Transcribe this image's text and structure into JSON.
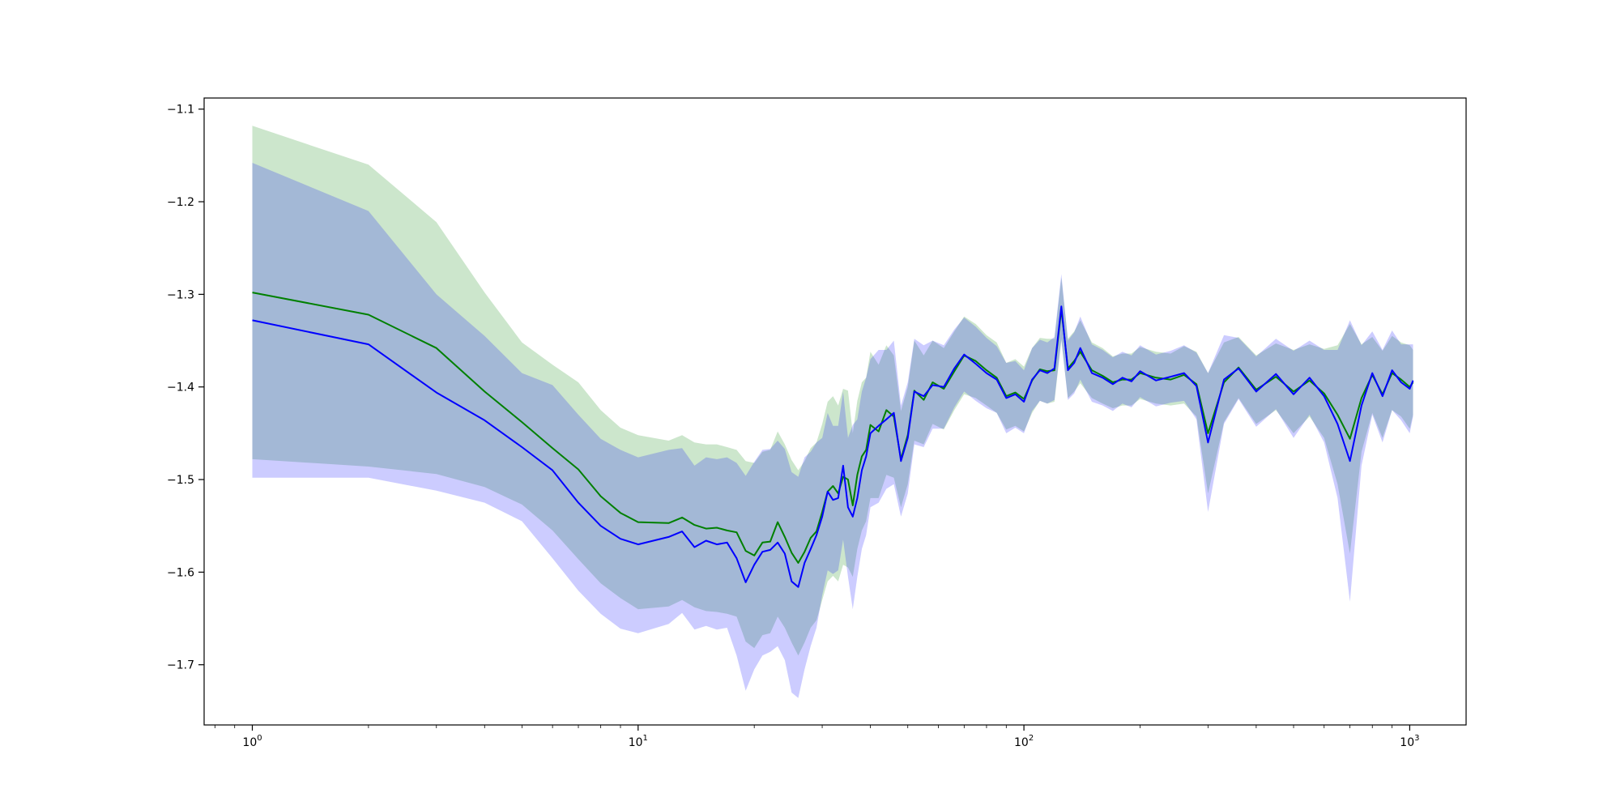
{
  "chart_data": {
    "type": "line",
    "title": "",
    "xlabel": "",
    "ylabel": "",
    "xscale": "log",
    "xlim": [
      0.75,
      1400
    ],
    "ylim": [
      -1.765,
      -1.088
    ],
    "grid": false,
    "legend": "none",
    "x_ticks": [
      {
        "value": 1,
        "base": "10",
        "exp": "0"
      },
      {
        "value": 10,
        "base": "10",
        "exp": "1"
      },
      {
        "value": 100,
        "base": "10",
        "exp": "2"
      },
      {
        "value": 1000,
        "base": "10",
        "exp": "3"
      }
    ],
    "y_ticks": [
      {
        "value": -1.1,
        "label": "−1.1"
      },
      {
        "value": -1.2,
        "label": "−1.2"
      },
      {
        "value": -1.3,
        "label": "−1.3"
      },
      {
        "value": -1.4,
        "label": "−1.4"
      },
      {
        "value": -1.5,
        "label": "−1.5"
      },
      {
        "value": -1.6,
        "label": "−1.6"
      },
      {
        "value": -1.7,
        "label": "−1.7"
      }
    ],
    "series": [
      {
        "color": "#008000",
        "band_color": "#008000",
        "band_opacity": 0.2,
        "x": [
          1,
          2,
          3,
          4,
          5,
          6,
          7,
          8,
          9,
          10,
          12,
          13,
          14,
          15,
          16,
          17,
          18,
          19,
          20,
          21,
          22,
          23,
          24,
          25,
          26,
          27,
          28,
          29,
          30,
          31,
          32,
          33,
          34,
          35,
          36,
          37,
          38,
          39,
          40,
          42,
          44,
          46,
          48,
          50,
          52,
          55,
          58,
          62,
          66,
          70,
          75,
          80,
          85,
          90,
          95,
          100,
          105,
          110,
          115,
          120,
          125,
          130,
          135,
          140,
          150,
          160,
          170,
          180,
          190,
          200,
          220,
          240,
          260,
          280,
          300,
          330,
          360,
          400,
          450,
          500,
          550,
          600,
          650,
          700,
          750,
          800,
          850,
          900,
          950,
          1000,
          1020
        ],
        "mean": [
          -1.298,
          -1.322,
          -1.358,
          -1.405,
          -1.438,
          -1.466,
          -1.489,
          -1.518,
          -1.536,
          -1.546,
          -1.547,
          -1.541,
          -1.549,
          -1.553,
          -1.552,
          -1.555,
          -1.557,
          -1.577,
          -1.582,
          -1.568,
          -1.567,
          -1.546,
          -1.562,
          -1.579,
          -1.59,
          -1.578,
          -1.563,
          -1.556,
          -1.535,
          -1.513,
          -1.507,
          -1.515,
          -1.497,
          -1.5,
          -1.528,
          -1.495,
          -1.475,
          -1.468,
          -1.441,
          -1.448,
          -1.425,
          -1.432,
          -1.478,
          -1.452,
          -1.404,
          -1.414,
          -1.395,
          -1.402,
          -1.383,
          -1.366,
          -1.372,
          -1.382,
          -1.39,
          -1.41,
          -1.406,
          -1.413,
          -1.393,
          -1.381,
          -1.383,
          -1.382,
          -1.316,
          -1.38,
          -1.372,
          -1.362,
          -1.382,
          -1.388,
          -1.395,
          -1.392,
          -1.392,
          -1.385,
          -1.39,
          -1.392,
          -1.387,
          -1.397,
          -1.45,
          -1.395,
          -1.379,
          -1.403,
          -1.389,
          -1.405,
          -1.393,
          -1.407,
          -1.43,
          -1.456,
          -1.412,
          -1.387,
          -1.408,
          -1.385,
          -1.392,
          -1.4,
          -1.395
        ],
        "lower": [
          -1.478,
          -1.486,
          -1.494,
          -1.508,
          -1.527,
          -1.555,
          -1.586,
          -1.612,
          -1.628,
          -1.64,
          -1.637,
          -1.63,
          -1.638,
          -1.642,
          -1.643,
          -1.645,
          -1.648,
          -1.675,
          -1.682,
          -1.668,
          -1.666,
          -1.648,
          -1.66,
          -1.676,
          -1.69,
          -1.676,
          -1.66,
          -1.652,
          -1.63,
          -1.61,
          -1.604,
          -1.61,
          -1.592,
          -1.595,
          -1.605,
          -1.575,
          -1.555,
          -1.545,
          -1.52,
          -1.52,
          -1.495,
          -1.498,
          -1.53,
          -1.505,
          -1.458,
          -1.462,
          -1.44,
          -1.446,
          -1.425,
          -1.408,
          -1.412,
          -1.42,
          -1.428,
          -1.446,
          -1.442,
          -1.448,
          -1.428,
          -1.415,
          -1.418,
          -1.416,
          -1.35,
          -1.412,
          -1.405,
          -1.396,
          -1.412,
          -1.418,
          -1.423,
          -1.42,
          -1.42,
          -1.413,
          -1.418,
          -1.42,
          -1.418,
          -1.432,
          -1.515,
          -1.438,
          -1.412,
          -1.44,
          -1.425,
          -1.45,
          -1.432,
          -1.455,
          -1.505,
          -1.58,
          -1.47,
          -1.428,
          -1.455,
          -1.425,
          -1.432,
          -1.445,
          -1.43
        ],
        "upper": [
          -1.118,
          -1.16,
          -1.222,
          -1.298,
          -1.352,
          -1.376,
          -1.395,
          -1.425,
          -1.444,
          -1.452,
          -1.458,
          -1.452,
          -1.46,
          -1.462,
          -1.462,
          -1.465,
          -1.468,
          -1.48,
          -1.482,
          -1.47,
          -1.468,
          -1.448,
          -1.462,
          -1.479,
          -1.49,
          -1.48,
          -1.466,
          -1.46,
          -1.44,
          -1.416,
          -1.41,
          -1.42,
          -1.402,
          -1.404,
          -1.45,
          -1.415,
          -1.395,
          -1.39,
          -1.362,
          -1.376,
          -1.355,
          -1.366,
          -1.426,
          -1.4,
          -1.35,
          -1.366,
          -1.35,
          -1.358,
          -1.34,
          -1.324,
          -1.332,
          -1.344,
          -1.352,
          -1.374,
          -1.37,
          -1.378,
          -1.358,
          -1.347,
          -1.348,
          -1.348,
          -1.282,
          -1.348,
          -1.34,
          -1.328,
          -1.352,
          -1.358,
          -1.367,
          -1.364,
          -1.364,
          -1.357,
          -1.362,
          -1.364,
          -1.356,
          -1.362,
          -1.385,
          -1.352,
          -1.346,
          -1.366,
          -1.353,
          -1.36,
          -1.354,
          -1.359,
          -1.355,
          -1.332,
          -1.354,
          -1.346,
          -1.361,
          -1.345,
          -1.352,
          -1.355,
          -1.36
        ]
      },
      {
        "color": "#0000ff",
        "band_color": "#0000ff",
        "band_opacity": 0.2,
        "x": [
          1,
          2,
          3,
          4,
          5,
          6,
          7,
          8,
          9,
          10,
          12,
          13,
          14,
          15,
          16,
          17,
          18,
          19,
          20,
          21,
          22,
          23,
          24,
          25,
          26,
          27,
          28,
          29,
          30,
          31,
          32,
          33,
          34,
          35,
          36,
          37,
          38,
          39,
          40,
          42,
          44,
          46,
          48,
          50,
          52,
          55,
          58,
          62,
          66,
          70,
          75,
          80,
          85,
          90,
          95,
          100,
          105,
          110,
          115,
          120,
          125,
          130,
          135,
          140,
          150,
          160,
          170,
          180,
          190,
          200,
          220,
          240,
          260,
          280,
          300,
          330,
          360,
          400,
          450,
          500,
          550,
          600,
          650,
          700,
          750,
          800,
          850,
          900,
          950,
          1000,
          1020
        ],
        "mean": [
          -1.328,
          -1.354,
          -1.406,
          -1.436,
          -1.465,
          -1.49,
          -1.525,
          -1.55,
          -1.564,
          -1.57,
          -1.562,
          -1.556,
          -1.573,
          -1.566,
          -1.57,
          -1.568,
          -1.585,
          -1.611,
          -1.592,
          -1.578,
          -1.576,
          -1.568,
          -1.58,
          -1.61,
          -1.616,
          -1.59,
          -1.575,
          -1.56,
          -1.54,
          -1.513,
          -1.522,
          -1.52,
          -1.485,
          -1.53,
          -1.54,
          -1.52,
          -1.49,
          -1.475,
          -1.45,
          -1.442,
          -1.435,
          -1.428,
          -1.48,
          -1.455,
          -1.405,
          -1.41,
          -1.398,
          -1.4,
          -1.38,
          -1.365,
          -1.375,
          -1.385,
          -1.392,
          -1.412,
          -1.408,
          -1.416,
          -1.392,
          -1.382,
          -1.385,
          -1.38,
          -1.313,
          -1.382,
          -1.374,
          -1.358,
          -1.385,
          -1.39,
          -1.397,
          -1.39,
          -1.394,
          -1.383,
          -1.393,
          -1.389,
          -1.385,
          -1.399,
          -1.46,
          -1.392,
          -1.38,
          -1.405,
          -1.386,
          -1.408,
          -1.39,
          -1.41,
          -1.44,
          -1.48,
          -1.42,
          -1.385,
          -1.41,
          -1.382,
          -1.395,
          -1.402,
          -1.393
        ],
        "lower": [
          -1.498,
          -1.498,
          -1.512,
          -1.525,
          -1.545,
          -1.585,
          -1.62,
          -1.645,
          -1.661,
          -1.666,
          -1.656,
          -1.644,
          -1.662,
          -1.658,
          -1.662,
          -1.66,
          -1.69,
          -1.728,
          -1.705,
          -1.69,
          -1.686,
          -1.68,
          -1.695,
          -1.73,
          -1.736,
          -1.705,
          -1.68,
          -1.66,
          -1.625,
          -1.598,
          -1.602,
          -1.598,
          -1.565,
          -1.605,
          -1.64,
          -1.605,
          -1.575,
          -1.56,
          -1.53,
          -1.525,
          -1.51,
          -1.505,
          -1.54,
          -1.515,
          -1.462,
          -1.465,
          -1.445,
          -1.445,
          -1.422,
          -1.405,
          -1.415,
          -1.423,
          -1.428,
          -1.45,
          -1.444,
          -1.45,
          -1.426,
          -1.415,
          -1.418,
          -1.414,
          -1.348,
          -1.414,
          -1.407,
          -1.392,
          -1.416,
          -1.42,
          -1.426,
          -1.418,
          -1.422,
          -1.411,
          -1.421,
          -1.417,
          -1.415,
          -1.435,
          -1.535,
          -1.44,
          -1.413,
          -1.443,
          -1.424,
          -1.455,
          -1.43,
          -1.46,
          -1.52,
          -1.632,
          -1.485,
          -1.43,
          -1.46,
          -1.425,
          -1.436,
          -1.45,
          -1.432
        ],
        "upper": [
          -1.158,
          -1.21,
          -1.3,
          -1.345,
          -1.385,
          -1.398,
          -1.43,
          -1.456,
          -1.468,
          -1.476,
          -1.468,
          -1.466,
          -1.485,
          -1.476,
          -1.478,
          -1.476,
          -1.482,
          -1.496,
          -1.481,
          -1.468,
          -1.467,
          -1.458,
          -1.467,
          -1.492,
          -1.497,
          -1.476,
          -1.47,
          -1.46,
          -1.455,
          -1.428,
          -1.442,
          -1.442,
          -1.405,
          -1.455,
          -1.441,
          -1.435,
          -1.405,
          -1.39,
          -1.37,
          -1.36,
          -1.36,
          -1.35,
          -1.42,
          -1.395,
          -1.348,
          -1.355,
          -1.35,
          -1.355,
          -1.338,
          -1.325,
          -1.335,
          -1.347,
          -1.356,
          -1.374,
          -1.372,
          -1.382,
          -1.358,
          -1.349,
          -1.352,
          -1.346,
          -1.278,
          -1.35,
          -1.341,
          -1.324,
          -1.354,
          -1.36,
          -1.368,
          -1.362,
          -1.366,
          -1.355,
          -1.365,
          -1.361,
          -1.355,
          -1.363,
          -1.385,
          -1.344,
          -1.347,
          -1.367,
          -1.348,
          -1.361,
          -1.35,
          -1.36,
          -1.36,
          -1.328,
          -1.355,
          -1.34,
          -1.36,
          -1.339,
          -1.354,
          -1.354,
          -1.354
        ]
      }
    ]
  }
}
